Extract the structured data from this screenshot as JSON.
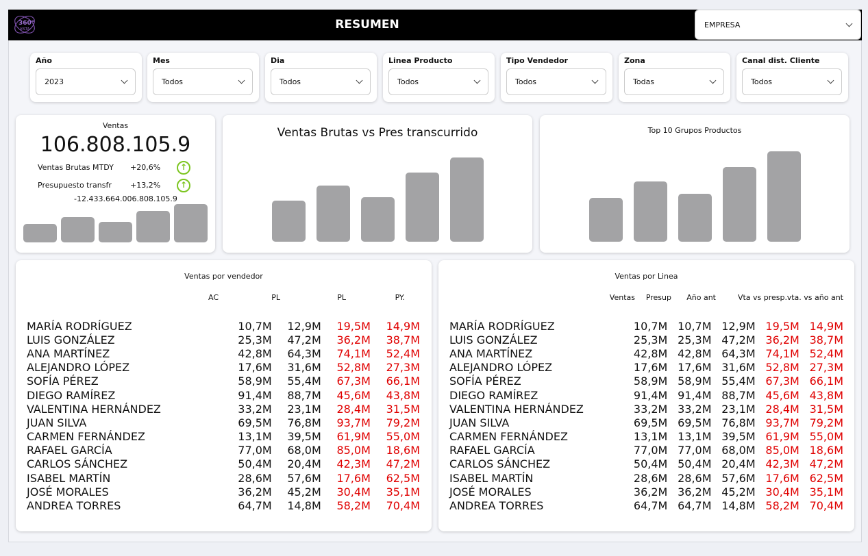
{
  "header": {
    "title": "RESUMEN",
    "logo_text": "360° VISTA",
    "company_select": "EMPRESA"
  },
  "filters": [
    {
      "label": "Año",
      "value": "2023"
    },
    {
      "label": "Mes",
      "value": "Todos"
    },
    {
      "label": "Dia",
      "value": "Todos"
    },
    {
      "label": "Linea Producto",
      "value": "Todos"
    },
    {
      "label": "Tipo Vendedor",
      "value": "Todos"
    },
    {
      "label": "Zona",
      "value": "Todas"
    },
    {
      "label": "Canal dist. Cliente",
      "value": "Todos"
    }
  ],
  "kpi": {
    "title": "Ventas",
    "value": "106.808.105.9",
    "rows": [
      {
        "label": "Ventas Brutas MTDY",
        "value": "+20,6%",
        "trend": "up"
      },
      {
        "label": "Presupuesto transfr",
        "value": "+13,2%",
        "trend": "up"
      }
    ],
    "diff": "-12.433.664.006.808.105.9",
    "bars": [
      27,
      37,
      30,
      46,
      56
    ]
  },
  "chart_center": {
    "title": "Ventas Brutas vs Pres transcurrido",
    "bars": [
      60,
      82,
      65,
      101,
      123
    ]
  },
  "chart_right": {
    "title": "Top 10 Grupos Productos",
    "bars": [
      64,
      88,
      70,
      109,
      132
    ]
  },
  "colors": {
    "negative": "#e00000",
    "positive_icon": "#7cc520",
    "bar": "#a3a3a5"
  },
  "table_vendedor": {
    "title": "Ventas por vendedor",
    "columns": [
      "AC",
      "PL",
      "PL",
      "PY."
    ],
    "rows": [
      [
        "MARÍA RODRÍGUEZ",
        "10,7M",
        "12,9M",
        "19,5M",
        "14,9M"
      ],
      [
        "LUIS GONZÁLEZ",
        "25,3M",
        "47,2M",
        "36,2M",
        "38,7M"
      ],
      [
        "ANA MARTÍNEZ",
        "42,8M",
        "64,3M",
        "74,1M",
        "52,4M"
      ],
      [
        "ALEJANDRO LÓPEZ",
        "17,6M",
        "31,6M",
        "52,8M",
        "27,3M"
      ],
      [
        "SOFÍA PÉREZ",
        "58,9M",
        "55,4M",
        "67,3M",
        "66,1M"
      ],
      [
        "DIEGO RAMÍREZ",
        "91,4M",
        "88,7M",
        "45,6M",
        "43,8M"
      ],
      [
        "VALENTINA HERNÁNDEZ",
        "33,2M",
        "23,1M",
        "28,4M",
        "31,5M"
      ],
      [
        "JUAN SILVA",
        "69,5M",
        "76,8M",
        "93,7M",
        "79,2M"
      ],
      [
        "CARMEN FERNÁNDEZ",
        "13,1M",
        "39,5M",
        "61,9M",
        "55,0M"
      ],
      [
        "RAFAEL GARCÍA",
        "77,0M",
        "68,0M",
        "85,0M",
        "18,6M"
      ],
      [
        "CARLOS SÁNCHEZ",
        "50,4M",
        "20,4M",
        "42,3M",
        "47,2M"
      ],
      [
        "ISABEL MARTÍN",
        "28,6M",
        "57,6M",
        "17,6M",
        "62,5M"
      ],
      [
        "JOSÉ MORALES",
        "36,2M",
        "45,2M",
        "30,4M",
        "35,1M"
      ],
      [
        "ANDREA TORRES",
        "64,7M",
        "14,8M",
        "58,2M",
        "70,4M"
      ]
    ]
  },
  "table_linea": {
    "title": "Ventas por Linea",
    "columns": [
      "Ventas",
      "Presup",
      "Año ant",
      "Vta vs presp.",
      "vta. vs año ant"
    ],
    "rows": [
      [
        "MARÍA RODRÍGUEZ",
        "10,7M",
        "10,7M",
        "12,9M",
        "19,5M",
        "14,9M"
      ],
      [
        "LUIS GONZÁLEZ",
        "25,3M",
        "25,3M",
        "47,2M",
        "36,2M",
        "38,7M"
      ],
      [
        "ANA MARTÍNEZ",
        "42,8M",
        "42,8M",
        "64,3M",
        "74,1M",
        "52,4M"
      ],
      [
        "ALEJANDRO LÓPEZ",
        "17,6M",
        "17,6M",
        "31,6M",
        "52,8M",
        "27,3M"
      ],
      [
        "SOFÍA PÉREZ",
        "58,9M",
        "58,9M",
        "55,4M",
        "67,3M",
        "66,1M"
      ],
      [
        "DIEGO RAMÍREZ",
        "91,4M",
        "91,4M",
        "88,7M",
        "45,6M",
        "43,8M"
      ],
      [
        "VALENTINA HERNÁNDEZ",
        "33,2M",
        "33,2M",
        "23,1M",
        "28,4M",
        "31,5M"
      ],
      [
        "JUAN SILVA",
        "69,5M",
        "69,5M",
        "76,8M",
        "93,7M",
        "79,2M"
      ],
      [
        "CARMEN FERNÁNDEZ",
        "13,1M",
        "13,1M",
        "39,5M",
        "61,9M",
        "55,0M"
      ],
      [
        "RAFAEL GARCÍA",
        "77,0M",
        "77,0M",
        "68,0M",
        "85,0M",
        "18,6M"
      ],
      [
        "CARLOS SÁNCHEZ",
        "50,4M",
        "50,4M",
        "20,4M",
        "42,3M",
        "47,2M"
      ],
      [
        "ISABEL MARTÍN",
        "28,6M",
        "28,6M",
        "57,6M",
        "17,6M",
        "62,5M"
      ],
      [
        "JOSÉ MORALES",
        "36,2M",
        "36,2M",
        "45,2M",
        "30,4M",
        "35,1M"
      ],
      [
        "ANDREA TORRES",
        "64,7M",
        "64,7M",
        "14,8M",
        "58,2M",
        "70,4M"
      ]
    ]
  }
}
